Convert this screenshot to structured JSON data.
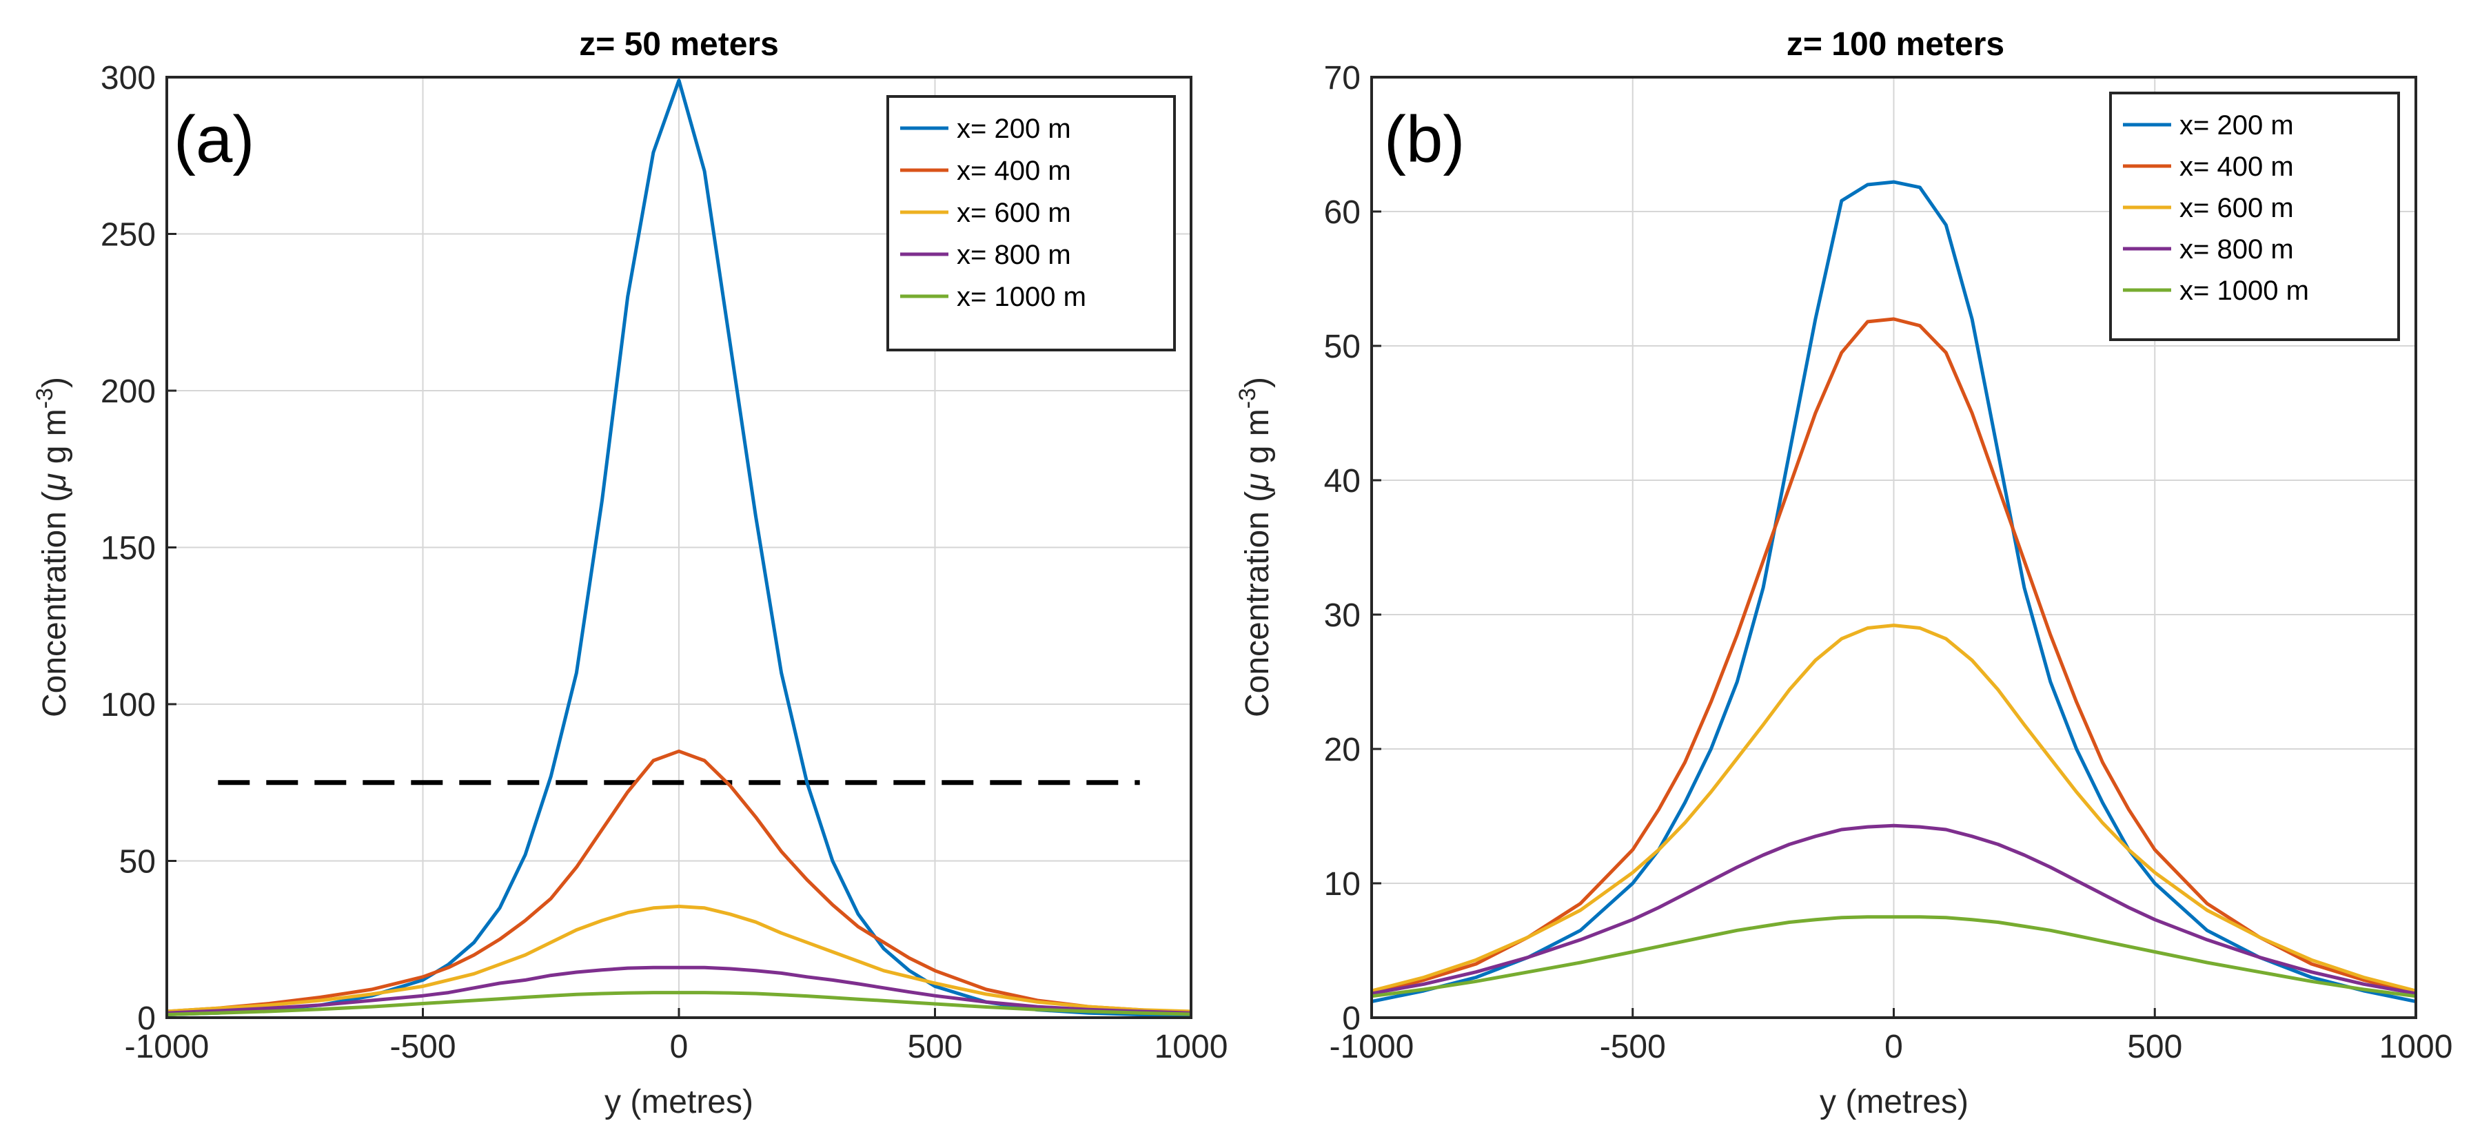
{
  "chart_data": [
    {
      "type": "line",
      "panel_label": "(a)",
      "title": "z= 50 meters",
      "xlabel": "y (metres)",
      "ylabel_text": "Concentration (",
      "ylabel_mu": "μ",
      "ylabel_unit": " g m",
      "ylabel_exp": "-3",
      "ylabel_close": ")",
      "xlim": [
        -1000,
        1000
      ],
      "ylim": [
        0,
        300
      ],
      "xticks": [
        -1000,
        -500,
        0,
        500,
        1000
      ],
      "yticks": [
        0,
        50,
        100,
        150,
        200,
        250,
        300
      ],
      "xtick_labels": [
        "-1000",
        "-500",
        "0",
        "500",
        "1000"
      ],
      "ytick_labels": [
        "0",
        "50",
        "100",
        "150",
        "200",
        "250",
        "300"
      ],
      "grid": true,
      "legend_position": "top-right",
      "x": [
        -1000,
        -900,
        -800,
        -700,
        -600,
        -500,
        -450,
        -400,
        -350,
        -300,
        -250,
        -200,
        -150,
        -100,
        -50,
        0,
        50,
        100,
        150,
        200,
        250,
        300,
        350,
        400,
        450,
        500,
        600,
        700,
        800,
        900,
        1000
      ],
      "series": [
        {
          "name": "x= 200 m",
          "color": "#0072BD",
          "values": [
            1,
            1.5,
            2.5,
            4,
            7,
            12,
            17,
            24,
            35,
            52,
            77,
            110,
            165,
            230,
            276,
            299,
            270,
            215,
            160,
            110,
            75,
            50,
            33,
            22,
            15,
            10,
            5,
            2.5,
            1.5,
            1,
            0.5
          ]
        },
        {
          "name": "x= 400 m",
          "color": "#D95319",
          "values": [
            2,
            3,
            4.5,
            6.5,
            9,
            13,
            16,
            20,
            25,
            31,
            38,
            48,
            60,
            72,
            82,
            85,
            82,
            74,
            64,
            53,
            44,
            36,
            29,
            24,
            19,
            15,
            9,
            5.5,
            3.5,
            2.5,
            1.5
          ]
        },
        {
          "name": "x= 600 m",
          "color": "#EDB120",
          "values": [
            2,
            3,
            4,
            5.5,
            7.5,
            10,
            12,
            14,
            17,
            20,
            24,
            28,
            31,
            33.5,
            35,
            35.5,
            35,
            33,
            30.5,
            27,
            24,
            21,
            18,
            15,
            13,
            11,
            7.5,
            5,
            3.5,
            2.5,
            2
          ]
        },
        {
          "name": "x= 800 m",
          "color": "#7E2F8E",
          "values": [
            1.5,
            2.2,
            3,
            4,
            5.5,
            7,
            8,
            9.5,
            11,
            12,
            13.5,
            14.5,
            15.2,
            15.8,
            16,
            16,
            16,
            15.6,
            15,
            14.2,
            13,
            12,
            10.8,
            9.5,
            8.2,
            7,
            5,
            3.5,
            2.6,
            2,
            1.5
          ]
        },
        {
          "name": "x= 1000 m",
          "color": "#77AC30",
          "values": [
            1,
            1.5,
            2,
            2.7,
            3.5,
            4.5,
            5,
            5.5,
            6,
            6.5,
            7,
            7.4,
            7.7,
            7.9,
            8,
            8,
            8,
            7.9,
            7.7,
            7.3,
            6.9,
            6.4,
            5.9,
            5.4,
            4.9,
            4.4,
            3.4,
            2.6,
            2,
            1.5,
            1.1
          ]
        }
      ],
      "reference_line": {
        "y": 75,
        "x_range": [
          -900,
          900
        ],
        "style": "dashed",
        "color": "#000000"
      }
    },
    {
      "type": "line",
      "panel_label": "(b)",
      "title": "z= 100 meters",
      "xlabel": "y (metres)",
      "ylabel_text": "Concentration (",
      "ylabel_mu": "μ",
      "ylabel_unit": " g m",
      "ylabel_exp": "-3",
      "ylabel_close": ")",
      "xlim": [
        -1000,
        1000
      ],
      "ylim": [
        0,
        70
      ],
      "xticks": [
        -1000,
        -500,
        0,
        500,
        1000
      ],
      "yticks": [
        0,
        10,
        20,
        30,
        40,
        50,
        60,
        70
      ],
      "xtick_labels": [
        "-1000",
        "-500",
        "0",
        "500",
        "1000"
      ],
      "ytick_labels": [
        "0",
        "10",
        "20",
        "30",
        "40",
        "50",
        "60",
        "70"
      ],
      "grid": true,
      "legend_position": "top-right",
      "x": [
        -1000,
        -900,
        -800,
        -700,
        -600,
        -500,
        -450,
        -400,
        -350,
        -300,
        -250,
        -200,
        -150,
        -100,
        -50,
        0,
        50,
        100,
        150,
        200,
        250,
        300,
        350,
        400,
        450,
        500,
        600,
        700,
        800,
        900,
        1000
      ],
      "series": [
        {
          "name": "x= 200 m",
          "color": "#0072BD",
          "values": [
            1.2,
            2,
            3,
            4.5,
            6.5,
            10,
            12.5,
            16,
            20,
            25,
            32,
            42,
            52,
            60.8,
            62,
            62.2,
            61.8,
            59,
            52,
            42,
            32,
            25,
            20,
            16,
            12.5,
            10,
            6.5,
            4.5,
            3,
            2,
            1.2
          ]
        },
        {
          "name": "x= 400 m",
          "color": "#D95319",
          "values": [
            1.8,
            2.8,
            4,
            6,
            8.5,
            12.5,
            15.5,
            19,
            23.5,
            28.5,
            34,
            39.5,
            45,
            49.5,
            51.8,
            52,
            51.5,
            49.5,
            45,
            39.5,
            34,
            28.5,
            23.5,
            19,
            15.5,
            12.5,
            8.5,
            6,
            4,
            2.8,
            1.8
          ]
        },
        {
          "name": "x= 600 m",
          "color": "#EDB120",
          "values": [
            2,
            3,
            4.3,
            6,
            8,
            10.8,
            12.5,
            14.5,
            16.8,
            19.3,
            21.8,
            24.4,
            26.6,
            28.2,
            29,
            29.2,
            29,
            28.2,
            26.6,
            24.4,
            21.8,
            19.3,
            16.8,
            14.5,
            12.5,
            10.8,
            8,
            6,
            4.3,
            3,
            2
          ]
        },
        {
          "name": "x= 800 m",
          "color": "#7E2F8E",
          "values": [
            1.8,
            2.5,
            3.4,
            4.5,
            5.8,
            7.3,
            8.2,
            9.2,
            10.2,
            11.2,
            12.1,
            12.9,
            13.5,
            14,
            14.2,
            14.3,
            14.2,
            14,
            13.5,
            12.9,
            12.1,
            11.2,
            10.2,
            9.2,
            8.2,
            7.3,
            5.8,
            4.5,
            3.4,
            2.5,
            1.8
          ]
        },
        {
          "name": "x= 1000 m",
          "color": "#77AC30",
          "values": [
            1.6,
            2.1,
            2.7,
            3.4,
            4.1,
            4.9,
            5.3,
            5.7,
            6.1,
            6.5,
            6.8,
            7.1,
            7.3,
            7.45,
            7.5,
            7.5,
            7.5,
            7.45,
            7.3,
            7.1,
            6.8,
            6.5,
            6.1,
            5.7,
            5.3,
            4.9,
            4.1,
            3.4,
            2.7,
            2.1,
            1.6
          ]
        }
      ]
    }
  ]
}
